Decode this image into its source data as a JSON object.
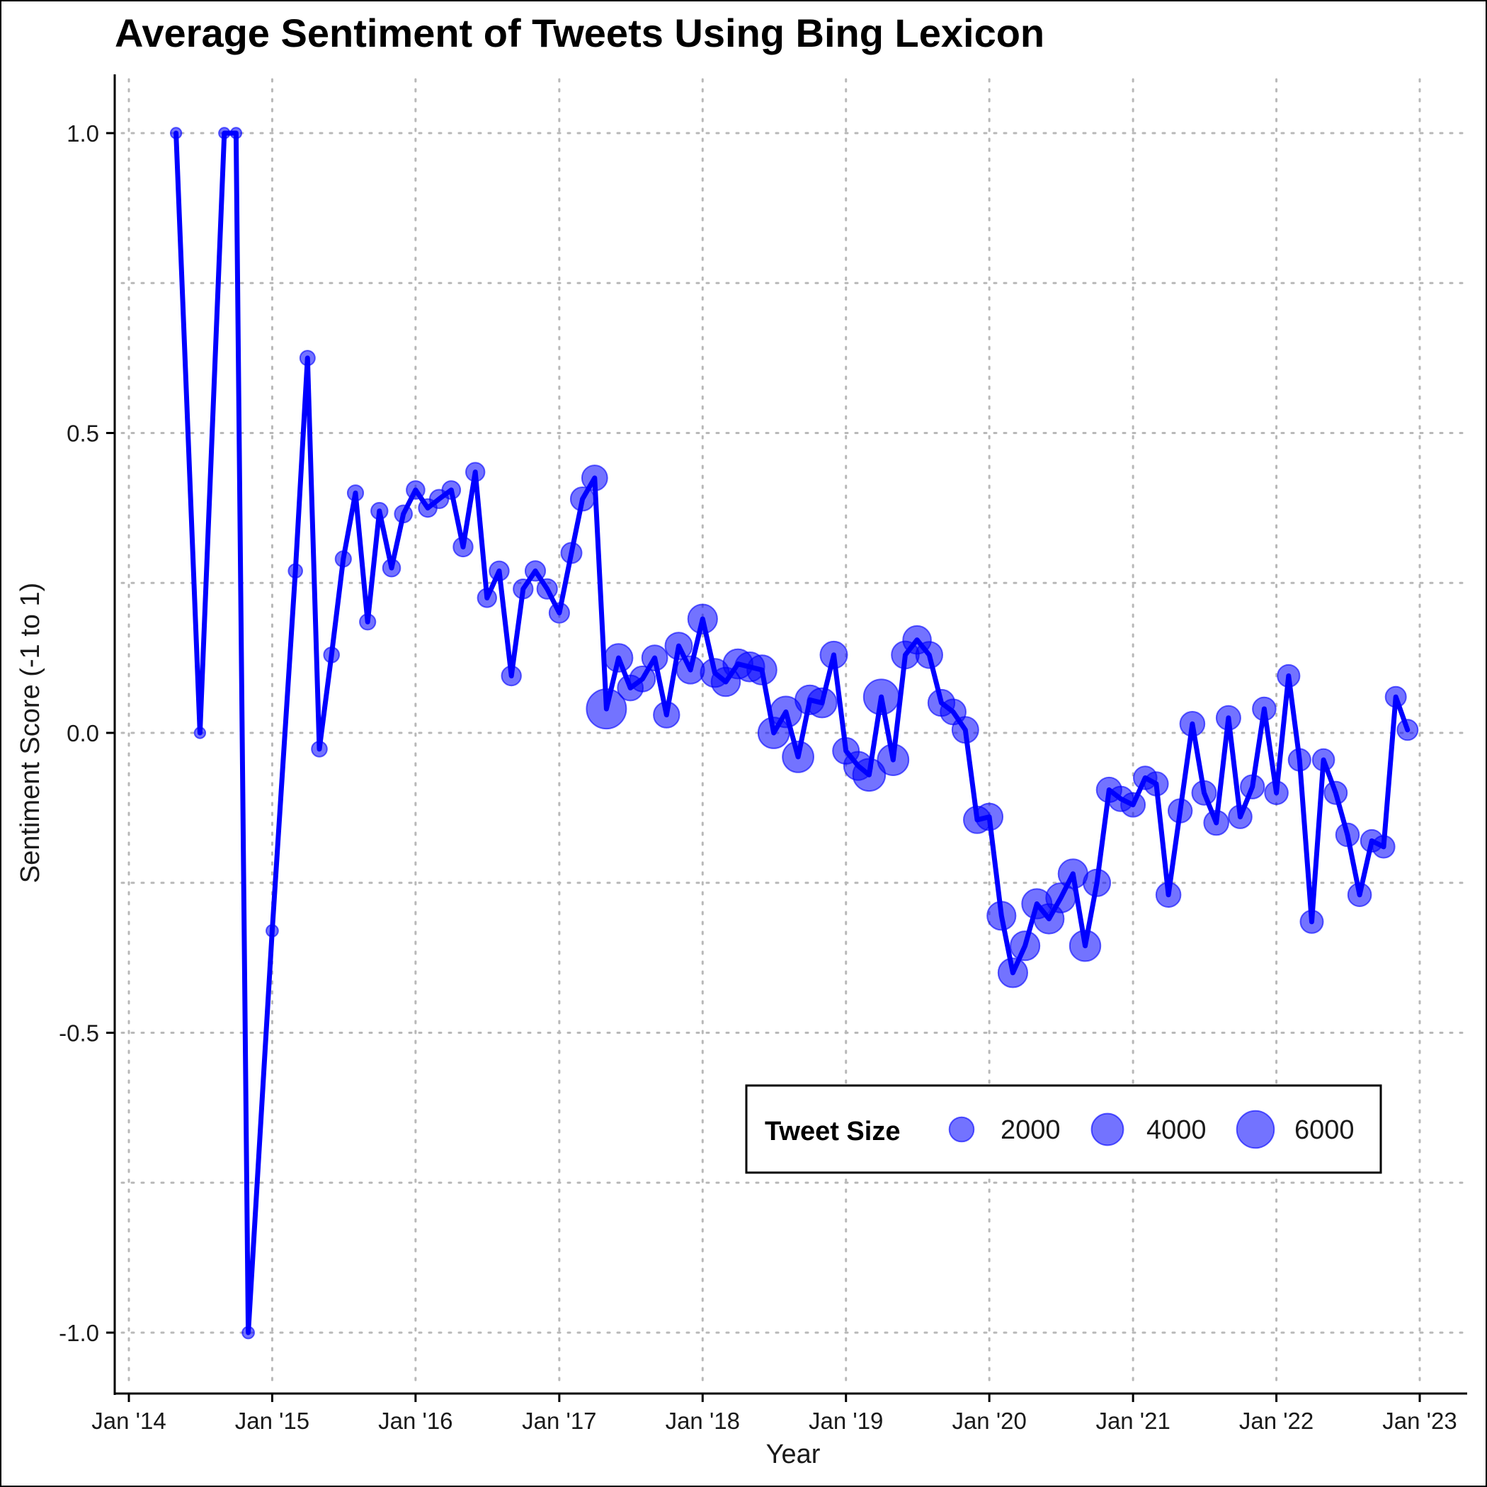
{
  "chart_data": {
    "type": "line",
    "title": "Average Sentiment of Tweets Using Bing Lexicon",
    "xlabel": "Year",
    "ylabel": "Sentiment Score (-1 to 1)",
    "xlim": [
      "2014-01-01",
      "2023-01-01"
    ],
    "ylim": [
      -1.1,
      1.1
    ],
    "x_ticks": [
      {
        "date": "2014-01-01",
        "label": "Jan '14"
      },
      {
        "date": "2015-01-01",
        "label": "Jan '15"
      },
      {
        "date": "2016-01-01",
        "label": "Jan '16"
      },
      {
        "date": "2017-01-01",
        "label": "Jan '17"
      },
      {
        "date": "2018-01-01",
        "label": "Jan '18"
      },
      {
        "date": "2019-01-01",
        "label": "Jan '19"
      },
      {
        "date": "2020-01-01",
        "label": "Jan '20"
      },
      {
        "date": "2021-01-01",
        "label": "Jan '21"
      },
      {
        "date": "2022-01-01",
        "label": "Jan '22"
      },
      {
        "date": "2023-01-01",
        "label": "Jan '23"
      }
    ],
    "y_ticks": [
      {
        "value": 1.0,
        "label": "1.0"
      },
      {
        "value": 0.5,
        "label": "0.5"
      },
      {
        "value": 0.0,
        "label": "0.0"
      },
      {
        "value": -0.5,
        "label": "-0.5"
      },
      {
        "value": -1.0,
        "label": "-1.0"
      }
    ],
    "y_minor_gridlines": [
      0.75,
      0.25,
      -0.25,
      -0.75
    ],
    "grid": true,
    "grid_style": "dotted",
    "line_color": "#0000ff",
    "point_color": "#0000ff",
    "legend": {
      "title": "Tweet Size",
      "placement": "bottom-right",
      "entries": [
        {
          "value": 2000,
          "label": "2000"
        },
        {
          "value": 4000,
          "label": "4000"
        },
        {
          "value": 6000,
          "label": "6000"
        }
      ]
    },
    "points": [
      {
        "date": "2014-05-01",
        "value": 1.0,
        "size": 100
      },
      {
        "date": "2014-07-01",
        "value": 0.0,
        "size": 100
      },
      {
        "date": "2014-09-01",
        "value": 1.0,
        "size": 100
      },
      {
        "date": "2014-10-01",
        "value": 1.0,
        "size": 100
      },
      {
        "date": "2014-11-01",
        "value": -1.0,
        "size": 150
      },
      {
        "date": "2015-01-01",
        "value": -0.33,
        "size": 150
      },
      {
        "date": "2015-03-01",
        "value": 0.27,
        "size": 300
      },
      {
        "date": "2015-04-01",
        "value": 0.625,
        "size": 400
      },
      {
        "date": "2015-05-01",
        "value": -0.027,
        "size": 450
      },
      {
        "date": "2015-06-01",
        "value": 0.13,
        "size": 450
      },
      {
        "date": "2015-07-01",
        "value": 0.29,
        "size": 500
      },
      {
        "date": "2015-08-01",
        "value": 0.4,
        "size": 500
      },
      {
        "date": "2015-09-01",
        "value": 0.185,
        "size": 500
      },
      {
        "date": "2015-10-01",
        "value": 0.37,
        "size": 600
      },
      {
        "date": "2015-11-01",
        "value": 0.275,
        "size": 700
      },
      {
        "date": "2015-12-01",
        "value": 0.365,
        "size": 700
      },
      {
        "date": "2016-01-01",
        "value": 0.405,
        "size": 800
      },
      {
        "date": "2016-02-01",
        "value": 0.375,
        "size": 800
      },
      {
        "date": "2016-03-01",
        "value": 0.39,
        "size": 900
      },
      {
        "date": "2016-04-01",
        "value": 0.405,
        "size": 800
      },
      {
        "date": "2016-05-01",
        "value": 0.31,
        "size": 1000
      },
      {
        "date": "2016-06-01",
        "value": 0.435,
        "size": 900
      },
      {
        "date": "2016-07-01",
        "value": 0.225,
        "size": 900
      },
      {
        "date": "2016-08-01",
        "value": 0.27,
        "size": 1000
      },
      {
        "date": "2016-09-01",
        "value": 0.095,
        "size": 1000
      },
      {
        "date": "2016-10-01",
        "value": 0.24,
        "size": 1000
      },
      {
        "date": "2016-11-01",
        "value": 0.27,
        "size": 1100
      },
      {
        "date": "2016-12-01",
        "value": 0.24,
        "size": 1100
      },
      {
        "date": "2017-01-01",
        "value": 0.2,
        "size": 1100
      },
      {
        "date": "2017-02-01",
        "value": 0.3,
        "size": 1200
      },
      {
        "date": "2017-03-01",
        "value": 0.39,
        "size": 1800
      },
      {
        "date": "2017-04-01",
        "value": 0.425,
        "size": 2200
      },
      {
        "date": "2017-05-01",
        "value": 0.04,
        "size": 7000
      },
      {
        "date": "2017-06-01",
        "value": 0.125,
        "size": 2900
      },
      {
        "date": "2017-07-01",
        "value": 0.075,
        "size": 2200
      },
      {
        "date": "2017-08-01",
        "value": 0.09,
        "size": 2200
      },
      {
        "date": "2017-09-01",
        "value": 0.125,
        "size": 2200
      },
      {
        "date": "2017-10-01",
        "value": 0.03,
        "size": 2300
      },
      {
        "date": "2017-11-01",
        "value": 0.145,
        "size": 2600
      },
      {
        "date": "2017-12-01",
        "value": 0.105,
        "size": 2800
      },
      {
        "date": "2018-01-01",
        "value": 0.19,
        "size": 3200
      },
      {
        "date": "2018-02-01",
        "value": 0.1,
        "size": 3000
      },
      {
        "date": "2018-03-01",
        "value": 0.085,
        "size": 3100
      },
      {
        "date": "2018-04-01",
        "value": 0.115,
        "size": 3300
      },
      {
        "date": "2018-05-01",
        "value": 0.11,
        "size": 3300
      },
      {
        "date": "2018-06-01",
        "value": 0.105,
        "size": 3300
      },
      {
        "date": "2018-07-01",
        "value": 0.0,
        "size": 3800
      },
      {
        "date": "2018-08-01",
        "value": 0.035,
        "size": 3800
      },
      {
        "date": "2018-09-01",
        "value": -0.04,
        "size": 3800
      },
      {
        "date": "2018-10-01",
        "value": 0.055,
        "size": 3200
      },
      {
        "date": "2018-11-01",
        "value": 0.05,
        "size": 3300
      },
      {
        "date": "2018-12-01",
        "value": 0.13,
        "size": 2600
      },
      {
        "date": "2019-01-01",
        "value": -0.03,
        "size": 2400
      },
      {
        "date": "2019-02-01",
        "value": -0.055,
        "size": 3000
      },
      {
        "date": "2019-03-01",
        "value": -0.07,
        "size": 4200
      },
      {
        "date": "2019-04-01",
        "value": 0.06,
        "size": 5200
      },
      {
        "date": "2019-05-01",
        "value": -0.045,
        "size": 3800
      },
      {
        "date": "2019-06-01",
        "value": 0.13,
        "size": 2700
      },
      {
        "date": "2019-07-01",
        "value": 0.155,
        "size": 2900
      },
      {
        "date": "2019-08-01",
        "value": 0.13,
        "size": 2500
      },
      {
        "date": "2019-09-01",
        "value": 0.05,
        "size": 2500
      },
      {
        "date": "2019-10-01",
        "value": 0.035,
        "size": 2200
      },
      {
        "date": "2019-11-01",
        "value": 0.005,
        "size": 2400
      },
      {
        "date": "2019-12-01",
        "value": -0.145,
        "size": 2600
      },
      {
        "date": "2020-01-01",
        "value": -0.14,
        "size": 2600
      },
      {
        "date": "2020-02-01",
        "value": -0.305,
        "size": 3000
      },
      {
        "date": "2020-03-01",
        "value": -0.4,
        "size": 3200
      },
      {
        "date": "2020-04-01",
        "value": -0.355,
        "size": 3200
      },
      {
        "date": "2020-05-01",
        "value": -0.285,
        "size": 3400
      },
      {
        "date": "2020-06-01",
        "value": -0.31,
        "size": 3400
      },
      {
        "date": "2020-07-01",
        "value": -0.275,
        "size": 3300
      },
      {
        "date": "2020-08-01",
        "value": -0.235,
        "size": 3200
      },
      {
        "date": "2020-09-01",
        "value": -0.355,
        "size": 3700
      },
      {
        "date": "2020-10-01",
        "value": -0.25,
        "size": 2600
      },
      {
        "date": "2020-11-01",
        "value": -0.095,
        "size": 2100
      },
      {
        "date": "2020-12-01",
        "value": -0.11,
        "size": 2100
      },
      {
        "date": "2021-01-01",
        "value": -0.12,
        "size": 1900
      },
      {
        "date": "2021-02-01",
        "value": -0.075,
        "size": 1700
      },
      {
        "date": "2021-03-01",
        "value": -0.085,
        "size": 1800
      },
      {
        "date": "2021-04-01",
        "value": -0.27,
        "size": 2000
      },
      {
        "date": "2021-05-01",
        "value": -0.13,
        "size": 1800
      },
      {
        "date": "2021-06-01",
        "value": 0.015,
        "size": 2000
      },
      {
        "date": "2021-07-01",
        "value": -0.1,
        "size": 1900
      },
      {
        "date": "2021-08-01",
        "value": -0.15,
        "size": 2000
      },
      {
        "date": "2021-09-01",
        "value": 0.025,
        "size": 1900
      },
      {
        "date": "2021-10-01",
        "value": -0.14,
        "size": 1700
      },
      {
        "date": "2021-11-01",
        "value": -0.09,
        "size": 1800
      },
      {
        "date": "2021-12-01",
        "value": 0.04,
        "size": 1700
      },
      {
        "date": "2022-01-01",
        "value": -0.1,
        "size": 1700
      },
      {
        "date": "2022-02-01",
        "value": 0.095,
        "size": 1500
      },
      {
        "date": "2022-03-01",
        "value": -0.045,
        "size": 1500
      },
      {
        "date": "2022-04-01",
        "value": -0.315,
        "size": 1600
      },
      {
        "date": "2022-05-01",
        "value": -0.045,
        "size": 1400
      },
      {
        "date": "2022-06-01",
        "value": -0.1,
        "size": 1600
      },
      {
        "date": "2022-07-01",
        "value": -0.17,
        "size": 1700
      },
      {
        "date": "2022-08-01",
        "value": -0.27,
        "size": 1700
      },
      {
        "date": "2022-09-01",
        "value": -0.18,
        "size": 1500
      },
      {
        "date": "2022-10-01",
        "value": -0.19,
        "size": 1500
      },
      {
        "date": "2022-11-01",
        "value": 0.06,
        "size": 1200
      },
      {
        "date": "2022-12-01",
        "value": 0.005,
        "size": 1200
      }
    ]
  }
}
